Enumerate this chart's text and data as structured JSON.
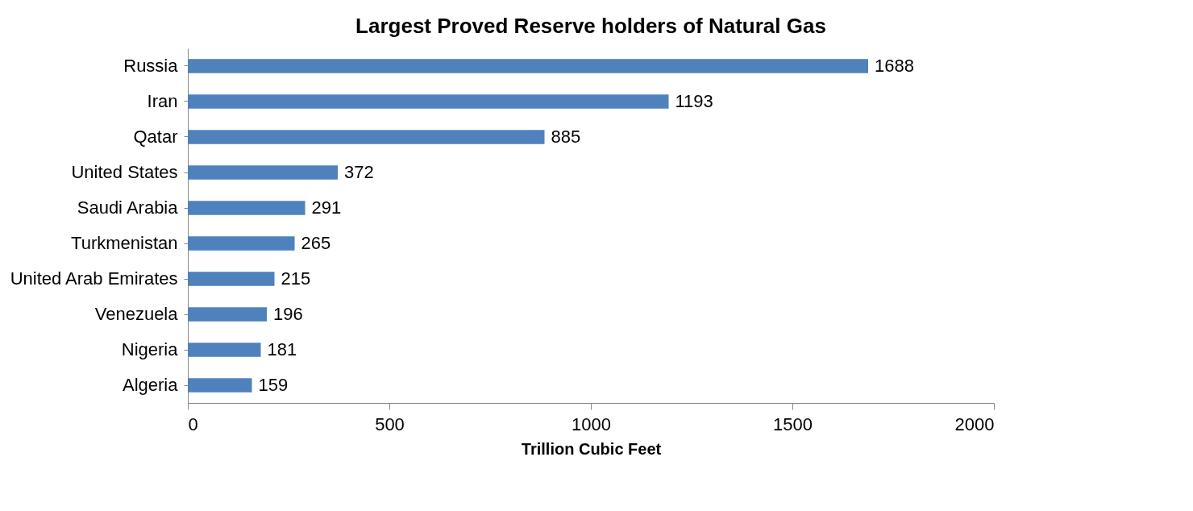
{
  "chart_data": {
    "type": "bar",
    "orientation": "horizontal",
    "title": "Largest Proved Reserve holders of Natural Gas",
    "xlabel": "Trillion Cubic Feet",
    "categories": [
      "Russia",
      "Iran",
      "Qatar",
      "United States",
      "Saudi Arabia",
      "Turkmenistan",
      "United Arab Emirates",
      "Venezuela",
      "Nigeria",
      "Algeria"
    ],
    "values": [
      1688,
      1193,
      885,
      372,
      291,
      265,
      215,
      196,
      181,
      159
    ],
    "color": "#4f81bd",
    "xlim": [
      0,
      2000
    ],
    "xticks": [
      0,
      500,
      1000,
      1500,
      2000
    ],
    "data_labels": true
  }
}
